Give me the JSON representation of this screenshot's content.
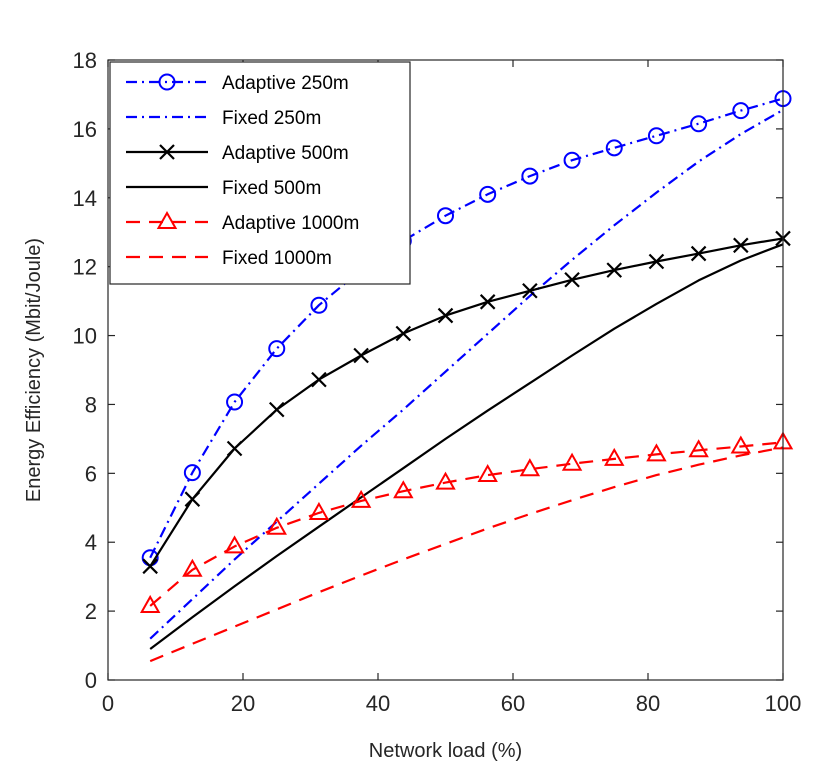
{
  "chart_data": {
    "type": "line",
    "title": "",
    "xlabel": "Network load  (%)",
    "ylabel": "Energy Efficiency (Mbit/Joule)",
    "xlim": [
      0,
      100
    ],
    "ylim": [
      0,
      18
    ],
    "xticks": [
      0,
      20,
      40,
      60,
      80,
      100
    ],
    "yticks": [
      0,
      2,
      4,
      6,
      8,
      10,
      12,
      14,
      16,
      18
    ],
    "grid": false,
    "legend_position": "top-left",
    "series": [
      {
        "name": "Adaptive 250m",
        "color": "#0000ff",
        "line_style": "dash-dot",
        "marker": "circle",
        "x": [
          6.25,
          12.5,
          18.75,
          25,
          31.25,
          37.5,
          43.75,
          50,
          56.25,
          62.5,
          68.75,
          75,
          81.25,
          87.5,
          93.75,
          100
        ],
        "y": [
          3.55,
          6.02,
          8.07,
          9.62,
          10.88,
          11.9,
          12.75,
          13.48,
          14.1,
          14.63,
          15.09,
          15.45,
          15.8,
          16.15,
          16.53,
          16.88
        ]
      },
      {
        "name": "Fixed 250m",
        "color": "#0000ff",
        "line_style": "dash-dot",
        "marker": "none",
        "x": [
          6.25,
          12.5,
          18.75,
          25,
          31.25,
          37.5,
          43.75,
          50,
          56.25,
          62.5,
          68.75,
          75,
          81.25,
          87.5,
          93.75,
          100
        ],
        "y": [
          1.2,
          2.35,
          3.5,
          4.6,
          5.7,
          6.8,
          7.85,
          8.95,
          10.05,
          11.15,
          12.2,
          13.2,
          14.15,
          15.05,
          15.85,
          16.55
        ]
      },
      {
        "name": "Adaptive 500m",
        "color": "#000000",
        "line_style": "solid",
        "marker": "x",
        "x": [
          6.25,
          12.5,
          18.75,
          25,
          31.25,
          37.5,
          43.75,
          50,
          56.25,
          62.5,
          68.75,
          75,
          81.25,
          87.5,
          93.75,
          100
        ],
        "y": [
          3.3,
          5.25,
          6.72,
          7.85,
          8.72,
          9.42,
          10.06,
          10.58,
          10.98,
          11.3,
          11.62,
          11.9,
          12.15,
          12.38,
          12.62,
          12.82
        ]
      },
      {
        "name": "Fixed 500m",
        "color": "#000000",
        "line_style": "solid",
        "marker": "none",
        "x": [
          6.25,
          12.5,
          18.75,
          25,
          31.25,
          37.5,
          43.75,
          50,
          56.25,
          62.5,
          68.75,
          75,
          81.25,
          87.5,
          93.75,
          100
        ],
        "y": [
          0.9,
          1.82,
          2.72,
          3.6,
          4.45,
          5.3,
          6.15,
          7.0,
          7.82,
          8.62,
          9.42,
          10.2,
          10.92,
          11.6,
          12.18,
          12.65
        ]
      },
      {
        "name": "Adaptive 1000m",
        "color": "#ff0000",
        "line_style": "dashed",
        "marker": "triangle",
        "x": [
          6.25,
          12.5,
          18.75,
          25,
          31.25,
          37.5,
          43.75,
          50,
          56.25,
          62.5,
          68.75,
          75,
          81.25,
          87.5,
          93.75,
          100
        ],
        "y": [
          2.15,
          3.2,
          3.88,
          4.42,
          4.85,
          5.2,
          5.48,
          5.73,
          5.95,
          6.12,
          6.28,
          6.42,
          6.55,
          6.67,
          6.78,
          6.9
        ]
      },
      {
        "name": "Fixed 1000m",
        "color": "#ff0000",
        "line_style": "dashed",
        "marker": "none",
        "x": [
          6.25,
          12.5,
          18.75,
          25,
          31.25,
          37.5,
          43.75,
          50,
          56.25,
          62.5,
          68.75,
          75,
          81.25,
          87.5,
          93.75,
          100
        ],
        "y": [
          0.55,
          1.05,
          1.55,
          2.05,
          2.55,
          3.03,
          3.5,
          3.95,
          4.4,
          4.82,
          5.22,
          5.6,
          5.95,
          6.25,
          6.52,
          6.75
        ]
      }
    ]
  }
}
